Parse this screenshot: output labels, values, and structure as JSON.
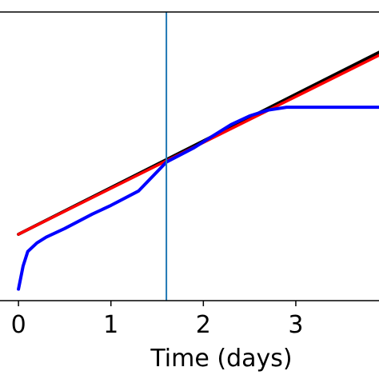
{
  "chart_data": {
    "type": "line",
    "xlabel": "Time (days)",
    "ylabel": "",
    "title": "",
    "xlim": [
      -0.2,
      3.9
    ],
    "ylim": [
      0,
      1
    ],
    "x_ticks": [
      0,
      1,
      2,
      3
    ],
    "x_tick_labels": [
      "0",
      "1",
      "2",
      "3"
    ],
    "grid": false,
    "vertical_marker": {
      "x": 1.6,
      "color": "#1f77b4"
    },
    "series": [
      {
        "color": "#000000",
        "x": [
          0,
          3.9
        ],
        "y": [
          0.23,
          0.86
        ]
      },
      {
        "color": "#ff0000",
        "x": [
          0,
          3.9
        ],
        "y": [
          0.23,
          0.85
        ]
      },
      {
        "color": "#0000ff",
        "x": [
          0,
          0.05,
          0.1,
          0.2,
          0.3,
          0.5,
          0.8,
          1.0,
          1.3,
          1.6,
          1.9,
          2.1,
          2.3,
          2.5,
          2.7,
          2.9,
          3.1,
          3.4,
          3.9
        ],
        "y": [
          0.04,
          0.12,
          0.17,
          0.2,
          0.22,
          0.25,
          0.3,
          0.33,
          0.38,
          0.48,
          0.53,
          0.57,
          0.61,
          0.64,
          0.66,
          0.67,
          0.67,
          0.67,
          0.67
        ]
      }
    ]
  }
}
